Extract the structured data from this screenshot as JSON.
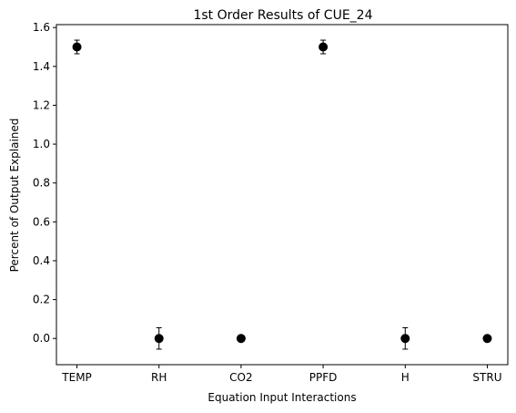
{
  "chart_data": {
    "type": "scatter",
    "title": "1st Order Results of CUE_24",
    "xlabel": "Equation Input Interactions",
    "ylabel": "Percent of Output Explained",
    "categories": [
      "TEMP",
      "RH",
      "CO2",
      "PPFD",
      "H",
      "STRU"
    ],
    "values": [
      1.5,
      0.0,
      0.0,
      1.5,
      0.0,
      0.0
    ],
    "errors": [
      0.035,
      0.055,
      0.0,
      0.035,
      0.055,
      0.0
    ],
    "ylim": [
      -0.135,
      1.615
    ],
    "yticks": [
      0.0,
      0.2,
      0.4,
      0.6,
      0.8,
      1.0,
      1.2,
      1.4,
      1.6
    ],
    "ytick_labels": [
      "0.0",
      "0.2",
      "0.4",
      "0.6",
      "0.8",
      "1.0",
      "1.2",
      "1.4",
      "1.6"
    ],
    "grid": false,
    "marker_color": "#000000",
    "errorbar_color": "#000000"
  }
}
